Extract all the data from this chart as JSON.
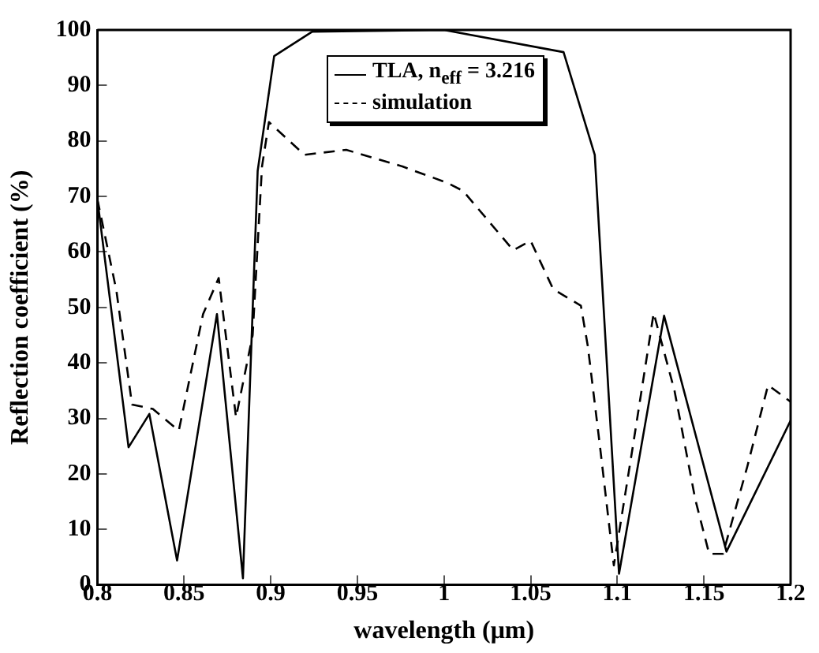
{
  "chart_data": {
    "type": "line",
    "xlabel": "wavelength (μm)",
    "ylabel": "Reflection coefficient (%)",
    "xlim": [
      0.8,
      1.2
    ],
    "xticks": [
      0.8,
      0.85,
      0.9,
      0.95,
      1,
      1.05,
      1.1,
      1.15,
      1.2
    ],
    "ylim": [
      0,
      100
    ],
    "yticks": [
      0,
      10,
      20,
      30,
      40,
      50,
      60,
      70,
      80,
      90,
      100
    ],
    "grid": false,
    "legend": "top right",
    "marker": "none",
    "series": [
      {
        "name": "TLA, n$_{eff}$ = 3.216",
        "color": "#000000",
        "line_style": "solid",
        "x": [
          0.8,
          0.818,
          0.83,
          0.846,
          0.869,
          0.884,
          0.8925,
          0.902,
          0.924,
          1.0,
          1.069,
          1.087,
          1.101,
          1.127,
          1.163,
          1.2
        ],
        "values": [
          69.5,
          24.8,
          30.8,
          4.4,
          48.8,
          1.2,
          74.6,
          95.3,
          99.7,
          100,
          96,
          77.5,
          2,
          48.5,
          6,
          29.6
        ]
      },
      {
        "name": "simulation",
        "color": "#000000",
        "line_style": "dashed",
        "x": [
          0.8,
          0.811,
          0.82,
          0.832,
          0.847,
          0.861,
          0.87,
          0.88,
          0.8896,
          0.895,
          0.899,
          0.9195,
          0.9436,
          0.976,
          1.0015,
          1.011,
          1.04,
          1.05,
          1.063,
          1.079,
          1.083,
          1.09,
          1.098,
          1.109,
          1.121,
          1.133,
          1.145,
          1.153,
          1.161,
          1.175,
          1.187,
          1.2
        ],
        "values": [
          69.5,
          53,
          32.5,
          31.7,
          27.8,
          48.8,
          55.3,
          30.2,
          45,
          75.4,
          83.4,
          77.5,
          78.4,
          75.4,
          72.5,
          71,
          60.3,
          62,
          53.3,
          50.3,
          43,
          25,
          3.5,
          25,
          49,
          35,
          15.4,
          5.6,
          5.6,
          21.3,
          36,
          33
        ]
      }
    ]
  }
}
